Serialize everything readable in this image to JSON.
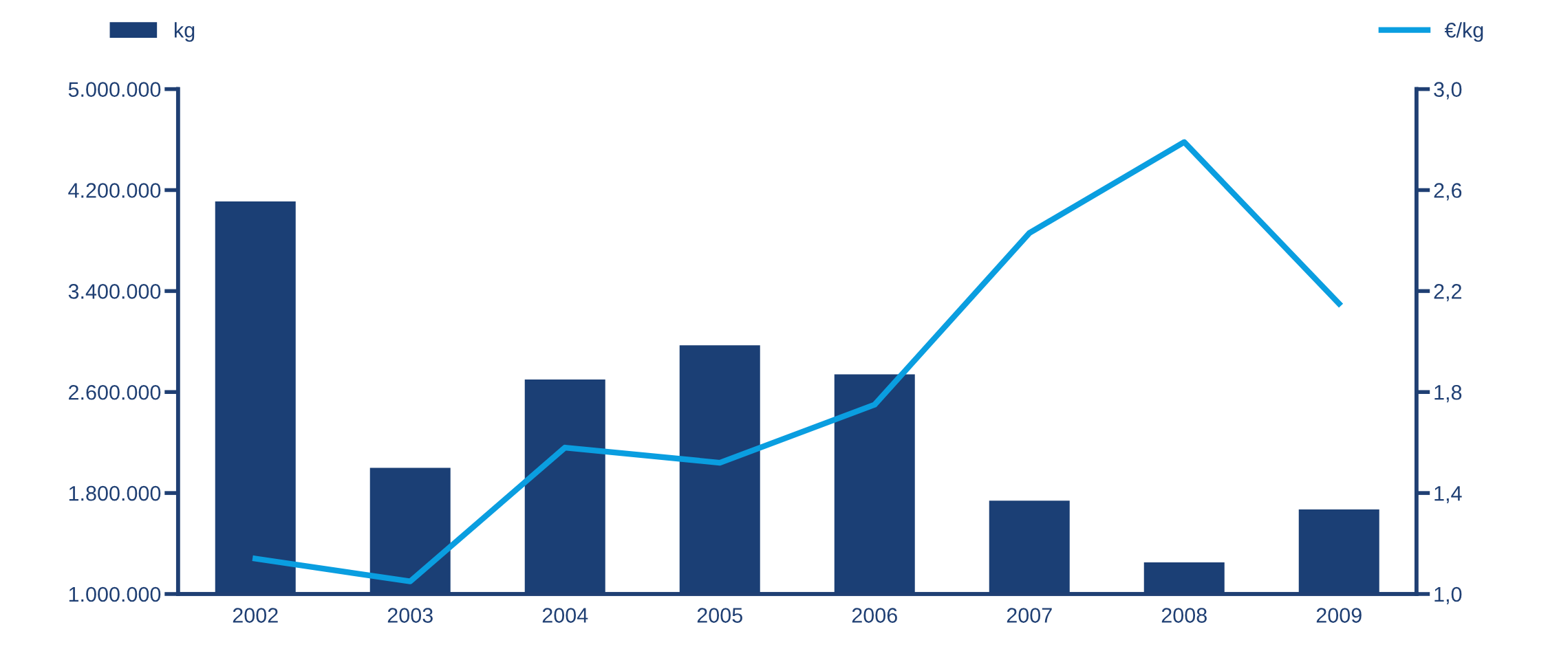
{
  "chart_data": {
    "type": "bar",
    "categories": [
      "2002",
      "2003",
      "2004",
      "2005",
      "2006",
      "2007",
      "2008",
      "2009"
    ],
    "series": [
      {
        "name": "kg",
        "axis": "y",
        "color": "#1b3f75",
        "values": [
          4110000,
          2000000,
          2700000,
          2970000,
          2740000,
          1740000,
          1250000,
          1670000
        ]
      },
      {
        "name": "€/kg",
        "type": "line",
        "axis": "y2",
        "color": "#0a9ee0",
        "values": [
          1.14,
          1.05,
          1.58,
          1.52,
          1.75,
          2.43,
          2.79,
          2.15
        ]
      }
    ],
    "ylim": [
      1000000,
      5000000
    ],
    "yticks": [
      {
        "value": 1000000,
        "label": "1.000.000"
      },
      {
        "value": 1800000,
        "label": "1.800.000"
      },
      {
        "value": 2600000,
        "label": "2.600.000"
      },
      {
        "value": 3400000,
        "label": "3.400.000"
      },
      {
        "value": 4200000,
        "label": "4.200.000"
      },
      {
        "value": 5000000,
        "label": "5.000.000"
      }
    ],
    "y2lim": [
      1.0,
      3.0
    ],
    "y2ticks": [
      {
        "value": 1.0,
        "label": "1,0"
      },
      {
        "value": 1.4,
        "label": "1,4"
      },
      {
        "value": 1.8,
        "label": "1,8"
      },
      {
        "value": 2.2,
        "label": "2,2"
      },
      {
        "value": 2.6,
        "label": "2,6"
      },
      {
        "value": 3.0,
        "label": "3,0"
      }
    ],
    "grid": false,
    "legend": "top",
    "marker": "none",
    "line_style": "solid"
  }
}
